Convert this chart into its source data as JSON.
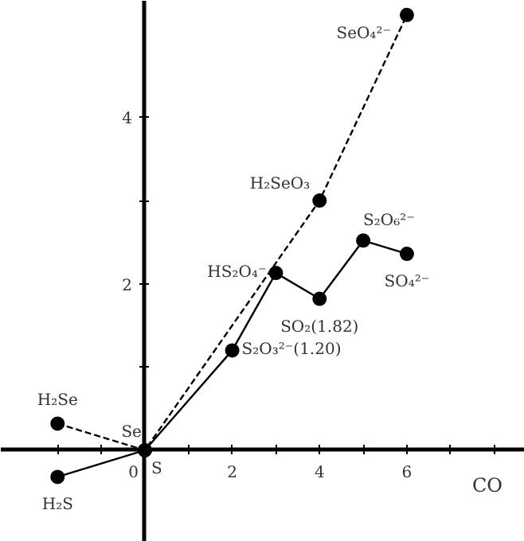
{
  "chart_data": {
    "type": "line",
    "xlabel": "CO",
    "xlim": [
      -3.3,
      8.7
    ],
    "ylim": [
      -1.1,
      5.4
    ],
    "xticks": [
      {
        "value": -2,
        "label": null
      },
      {
        "value": -1,
        "label": null
      },
      0,
      {
        "value": 1,
        "label": null
      },
      2,
      {
        "value": 3,
        "label": null
      },
      4,
      {
        "value": 5,
        "label": null
      },
      6,
      {
        "value": 7,
        "label": null
      },
      {
        "value": 8,
        "label": null
      }
    ],
    "yticks": [
      {
        "value": 1,
        "label": null
      },
      2,
      {
        "value": 3,
        "label": null
      },
      4
    ],
    "grid": false,
    "marker": "circle",
    "series": [
      {
        "color": "#000000",
        "line_style": "solid",
        "x": [
          -2,
          0,
          2,
          3,
          4,
          5,
          6
        ],
        "values": [
          -0.32,
          0,
          1.2,
          2.13,
          1.82,
          2.52,
          2.36
        ]
      },
      {
        "color": "#000000",
        "line_style": "dashed",
        "x": [
          -2,
          0,
          4,
          6
        ],
        "values": [
          0.32,
          0,
          3.0,
          5.23
        ]
      }
    ],
    "annotations": [
      {
        "text": "SeO₄²⁻",
        "x": 6,
        "y": 5.23
      },
      {
        "text": "H₂SeO₃",
        "x": 4,
        "y": 3.0
      },
      {
        "text": "S₂O₆²⁻",
        "x": 5,
        "y": 2.52
      },
      {
        "text": "HS₂O₄⁻",
        "x": 3,
        "y": 2.13
      },
      {
        "text": "SO₄²⁻",
        "x": 6,
        "y": 2.36
      },
      {
        "text": "SO₂(1.82)",
        "x": 4,
        "y": 1.82
      },
      {
        "text": "S₂O₃²⁻(1.20)",
        "x": 2,
        "y": 1.2
      },
      {
        "text": "H₂Se",
        "x": -2,
        "y": 0.32
      },
      {
        "text": "Se",
        "x": 0,
        "y": 0
      },
      {
        "text": "S",
        "x": 0,
        "y": 0
      },
      {
        "text": "H₂S",
        "x": -2,
        "y": -0.32
      }
    ]
  }
}
